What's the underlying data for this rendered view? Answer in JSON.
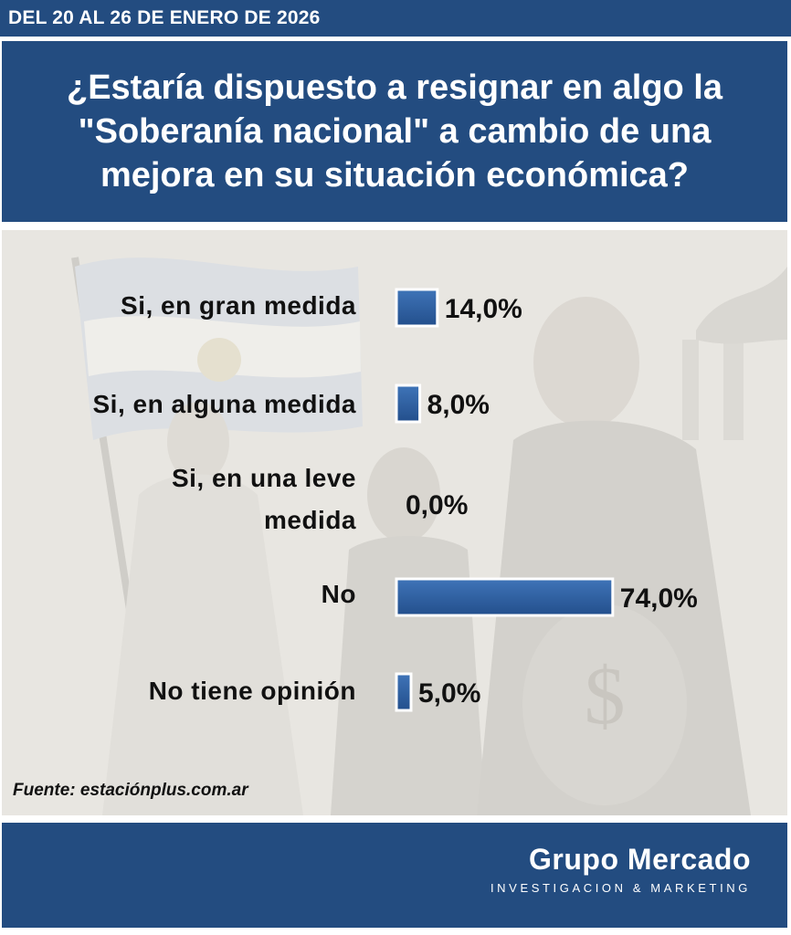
{
  "header": {
    "date_range": "DEL 20 AL 26 DE ENERO DE 2026",
    "question": "¿Estaría dispuesto a resignar en algo la \"Soberanía nacional\" a cambio de una mejora en su situación económica?"
  },
  "chart_data": {
    "type": "bar",
    "orientation": "horizontal",
    "title": "¿Estaría dispuesto a resignar en algo la \"Soberanía nacional\" a cambio de una mejora en su situación económica?",
    "categories": [
      "Si, en gran medida",
      "Si, en alguna medida",
      "Si, en una leve medida",
      "No",
      "No tiene opinión"
    ],
    "values": [
      14.0,
      8.0,
      0.0,
      74.0,
      5.0
    ],
    "value_labels": [
      "14,0%",
      "8,0%",
      "0,0%",
      "74,0%",
      "5,0%"
    ],
    "unit": "%",
    "xlim": [
      0,
      100
    ],
    "grid": false,
    "bar_color": "#2f5f9e"
  },
  "labels": {
    "cat1": "Si, en gran medida",
    "cat2": "Si, en alguna medida",
    "cat3_line1": "Si, en una leve",
    "cat3_line2": "medida",
    "cat4": "No",
    "cat5": "No tiene opinión"
  },
  "source": "Fuente: estaciónplus.com.ar",
  "footer": {
    "brand": "Grupo Mercado",
    "tagline": "INVESTIGACION & MARKETING"
  },
  "colors": {
    "header_bg": "#234c80",
    "chart_bg": "#e8e6e1",
    "bar": "#2f5f9e"
  }
}
